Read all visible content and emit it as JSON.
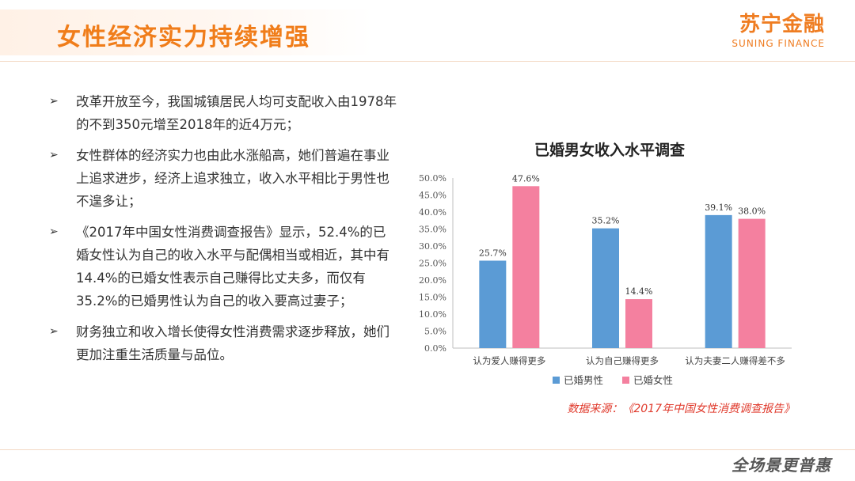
{
  "header": {
    "title": "女性经济实力持续增强",
    "logo_cn": "苏宁金融",
    "logo_en": "SUNING FINANCE"
  },
  "bullets": [
    "改革开放至今，我国城镇居民人均可支配收入由1978年的不到350元增至2018年的近4万元；",
    "女性群体的经济实力也由此水涨船高，她们普遍在事业上追求进步，经济上追求独立，收入水平相比于男性也不遑多让；",
    "《2017年中国女性消费调查报告》显示，52.4%的已婚女性认为自己的收入水平与配偶相当或相近，其中有14.4%的已婚女性表示自己赚得比丈夫多，而仅有35.2%的已婚男性认为自己的收入要高过妻子；",
    "财务独立和收入增长使得女性消费需求逐步释放，她们更加注重生活质量与品位。"
  ],
  "source": "数据来源：《2017年中国女性消费调查报告》",
  "slogan": "全场景更普惠",
  "colors": {
    "accent": "#f07d1a",
    "male": "#5b9bd5",
    "female": "#f4809f",
    "source": "#e03a2c"
  },
  "chart_data": {
    "type": "bar",
    "title": "已婚男女收入水平调查",
    "categories": [
      "认为爱人赚得更多",
      "认为自己赚得更多",
      "认为夫妻二人赚得差不多"
    ],
    "series": [
      {
        "name": "已婚男性",
        "values": [
          25.7,
          35.2,
          39.1
        ]
      },
      {
        "name": "已婚女性",
        "values": [
          47.6,
          14.4,
          38.0
        ]
      }
    ],
    "yticks": [
      "0.0%",
      "5.0%",
      "10.0%",
      "15.0%",
      "20.0%",
      "25.0%",
      "30.0%",
      "35.0%",
      "40.0%",
      "45.0%",
      "50.0%"
    ],
    "data_labels": [
      [
        "25.7%",
        "35.2%",
        "39.1%"
      ],
      [
        "47.6%",
        "14.4%",
        "38.0%"
      ]
    ],
    "ylim": [
      0,
      50
    ],
    "legend": "bottom"
  }
}
